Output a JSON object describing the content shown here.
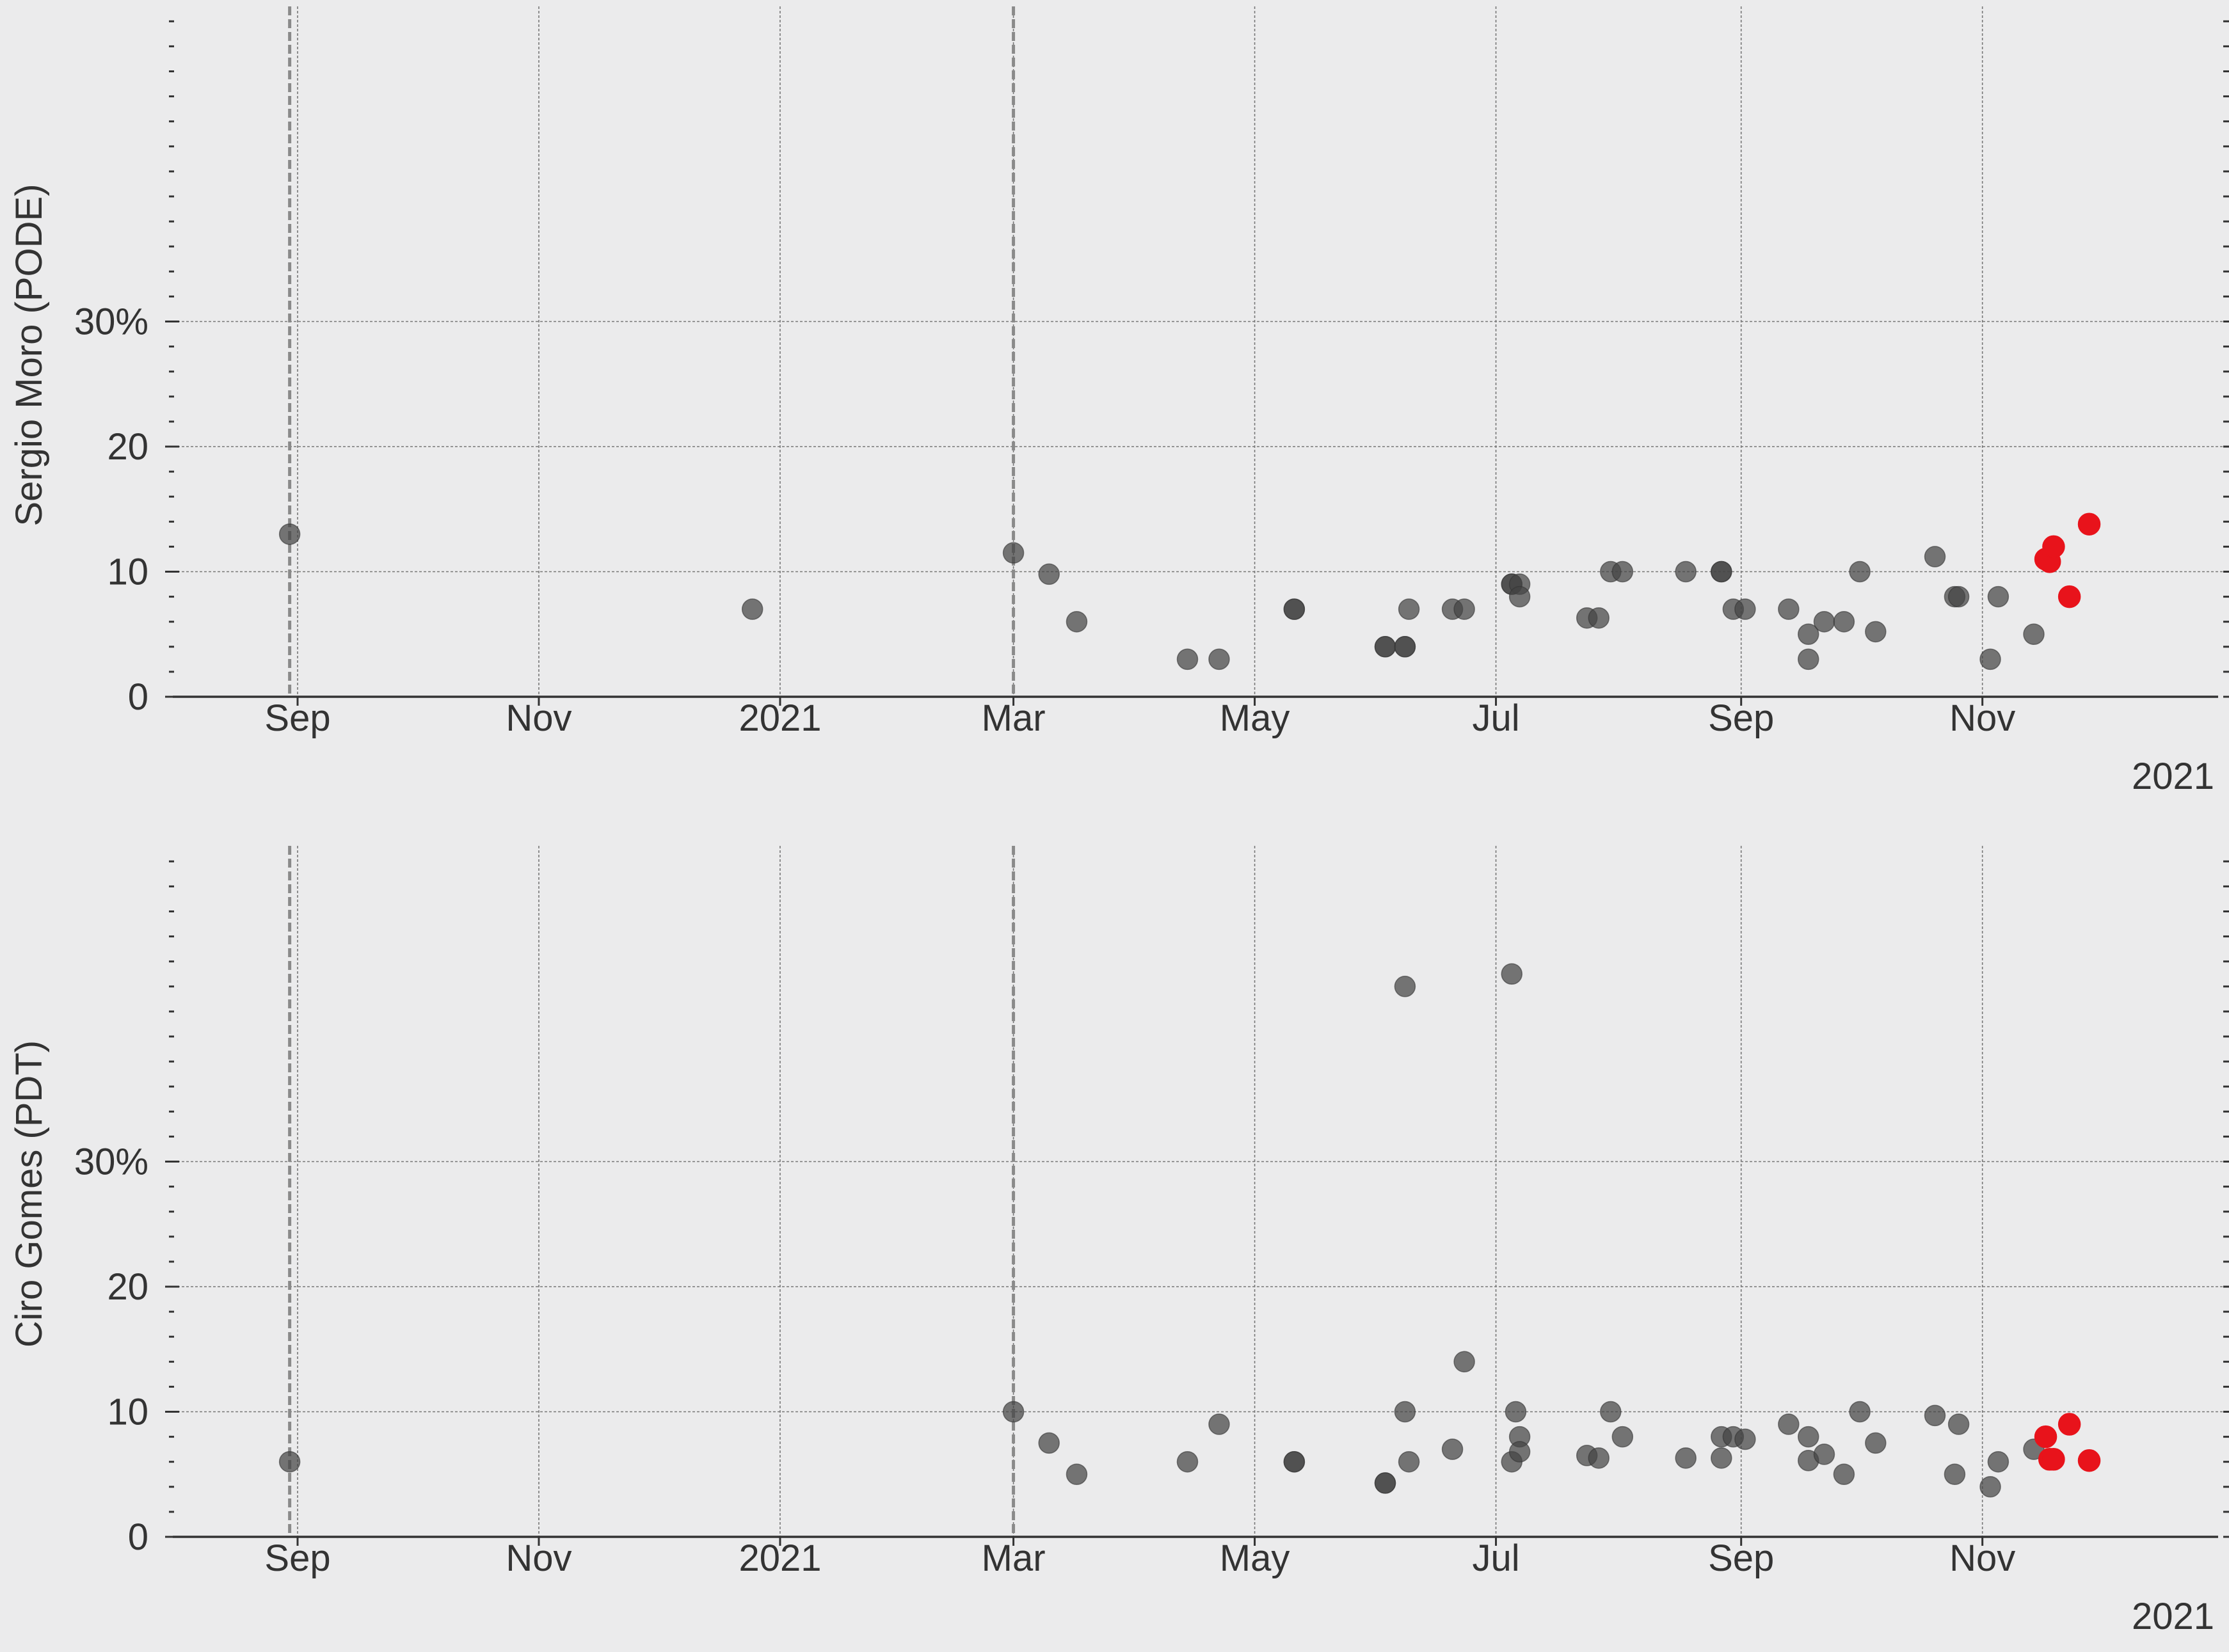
{
  "colors": {
    "background": "#ebebec",
    "point": "#444444",
    "highlight": "#e8131b",
    "grid": "#777777",
    "text": "#333333",
    "axis": "#333333"
  },
  "chart_data": [
    {
      "type": "scatter",
      "ylabel": "Sergio Moro (PODE)",
      "x_ticks": [
        "Sep",
        "Nov",
        "2021",
        "Mar",
        "May",
        "Jul",
        "Sep",
        "Nov"
      ],
      "year_label": "2021",
      "y_ticks": [
        "0",
        "10",
        "20",
        "30%"
      ],
      "y_tick_values": [
        0,
        10,
        20,
        30
      ],
      "ylim": [
        0,
        55
      ],
      "xlim": [
        "2020-08-11",
        "2021-12-18"
      ],
      "grid": true,
      "vlines": [
        "2020-08-30",
        "2021-03-01"
      ],
      "series": [
        {
          "points": [
            [
              "2020-08-30",
              13
            ],
            [
              "2020-12-25",
              7
            ],
            [
              "2021-03-01",
              11.5
            ],
            [
              "2021-03-10",
              9.8
            ],
            [
              "2021-03-17",
              6
            ],
            [
              "2021-04-14",
              3
            ],
            [
              "2021-04-22",
              3
            ],
            [
              "2021-05-11",
              7
            ],
            [
              "2021-05-11",
              7
            ],
            [
              "2021-06-03",
              4
            ],
            [
              "2021-06-03",
              4
            ],
            [
              "2021-06-08",
              4
            ],
            [
              "2021-06-08",
              4
            ],
            [
              "2021-06-09",
              7
            ],
            [
              "2021-06-20",
              7
            ],
            [
              "2021-06-23",
              7
            ],
            [
              "2021-07-05",
              9
            ],
            [
              "2021-07-05",
              9
            ],
            [
              "2021-07-07",
              9
            ],
            [
              "2021-07-07",
              8
            ],
            [
              "2021-07-24",
              6.3
            ],
            [
              "2021-07-27",
              6.3
            ],
            [
              "2021-07-30",
              10
            ],
            [
              "2021-08-02",
              10
            ],
            [
              "2021-08-18",
              10
            ],
            [
              "2021-08-27",
              10
            ],
            [
              "2021-08-27",
              10
            ],
            [
              "2021-08-30",
              7
            ],
            [
              "2021-09-02",
              7
            ],
            [
              "2021-09-13",
              7
            ],
            [
              "2021-09-18",
              5
            ],
            [
              "2021-09-18",
              3
            ],
            [
              "2021-09-22",
              6
            ],
            [
              "2021-09-27",
              6
            ],
            [
              "2021-10-01",
              10
            ],
            [
              "2021-10-05",
              5.2
            ],
            [
              "2021-10-20",
              11.2
            ],
            [
              "2021-10-25",
              8
            ],
            [
              "2021-10-26",
              8
            ],
            [
              "2021-11-03",
              3
            ],
            [
              "2021-11-05",
              8
            ],
            [
              "2021-11-14",
              5
            ]
          ]
        },
        {
          "highlight": true,
          "points": [
            [
              "2021-11-17",
              11
            ],
            [
              "2021-11-18",
              10.8
            ],
            [
              "2021-11-19",
              12
            ],
            [
              "2021-11-23",
              8
            ],
            [
              "2021-11-28",
              13.8
            ]
          ]
        }
      ]
    },
    {
      "type": "scatter",
      "ylabel": "Ciro Gomes (PDT)",
      "x_ticks": [
        "Sep",
        "Nov",
        "2021",
        "Mar",
        "May",
        "Jul",
        "Sep",
        "Nov"
      ],
      "year_label": "2021",
      "y_ticks": [
        "0",
        "10",
        "20",
        "30%"
      ],
      "y_tick_values": [
        0,
        10,
        20,
        30
      ],
      "ylim": [
        0,
        55
      ],
      "xlim": [
        "2020-08-11",
        "2021-12-18"
      ],
      "grid": true,
      "vlines": [
        "2020-08-30",
        "2021-03-01"
      ],
      "series": [
        {
          "points": [
            [
              "2020-08-30",
              6
            ],
            [
              "2021-03-01",
              10
            ],
            [
              "2021-03-10",
              7.5
            ],
            [
              "2021-03-17",
              5
            ],
            [
              "2021-04-14",
              6
            ],
            [
              "2021-04-22",
              9
            ],
            [
              "2021-05-11",
              6
            ],
            [
              "2021-05-11",
              6
            ],
            [
              "2021-06-03",
              4.3
            ],
            [
              "2021-06-03",
              4.3
            ],
            [
              "2021-06-08",
              44
            ],
            [
              "2021-06-08",
              10
            ],
            [
              "2021-06-09",
              6
            ],
            [
              "2021-06-20",
              7
            ],
            [
              "2021-06-23",
              14
            ],
            [
              "2021-07-05",
              45
            ],
            [
              "2021-07-05",
              6
            ],
            [
              "2021-07-06",
              10
            ],
            [
              "2021-07-07",
              8
            ],
            [
              "2021-07-07",
              6.8
            ],
            [
              "2021-07-24",
              6.5
            ],
            [
              "2021-07-27",
              6.3
            ],
            [
              "2021-07-30",
              10
            ],
            [
              "2021-08-02",
              8
            ],
            [
              "2021-08-18",
              6.3
            ],
            [
              "2021-08-27",
              6.3
            ],
            [
              "2021-08-27",
              8
            ],
            [
              "2021-08-30",
              8
            ],
            [
              "2021-09-02",
              7.8
            ],
            [
              "2021-09-13",
              9
            ],
            [
              "2021-09-18",
              8
            ],
            [
              "2021-09-18",
              6.1
            ],
            [
              "2021-09-22",
              6.6
            ],
            [
              "2021-09-27",
              5
            ],
            [
              "2021-10-01",
              10
            ],
            [
              "2021-10-05",
              7.5
            ],
            [
              "2021-10-20",
              9.7
            ],
            [
              "2021-10-25",
              5
            ],
            [
              "2021-10-26",
              9
            ],
            [
              "2021-11-03",
              4
            ],
            [
              "2021-11-05",
              6
            ],
            [
              "2021-11-14",
              7
            ]
          ]
        },
        {
          "highlight": true,
          "points": [
            [
              "2021-11-17",
              8
            ],
            [
              "2021-11-18",
              6.2
            ],
            [
              "2021-11-19",
              6.2
            ],
            [
              "2021-11-23",
              9
            ],
            [
              "2021-11-28",
              6.1
            ]
          ]
        }
      ]
    }
  ]
}
